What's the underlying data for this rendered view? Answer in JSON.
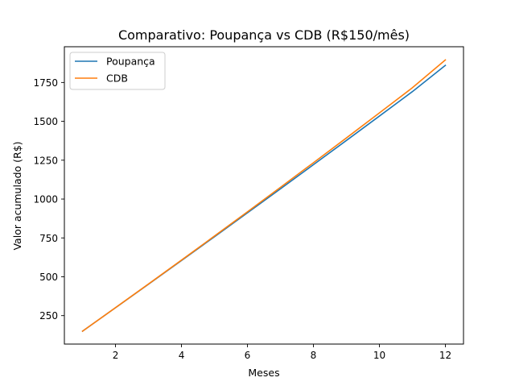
{
  "chart_data": {
    "type": "line",
    "title": "Comparativo: Poupança vs CDB (R$150/mês)",
    "xlabel": "Meses",
    "ylabel": "Valor acumulado (R$)",
    "xlim": [
      0.45,
      12.55
    ],
    "ylim": [
      67,
      1980
    ],
    "xticks": [
      2,
      4,
      6,
      8,
      10,
      12
    ],
    "yticks": [
      250,
      500,
      750,
      1000,
      1250,
      1500,
      1750
    ],
    "grid": false,
    "legend_position": "upper-left",
    "x": [
      1,
      2,
      3,
      4,
      5,
      6,
      7,
      8,
      9,
      10,
      11,
      12
    ],
    "series": [
      {
        "name": "Poupança",
        "color": "#1f77b4",
        "values": [
          150.0,
          300.75,
          452.25,
          604.5,
          757.5,
          911.25,
          1065.75,
          1221.0,
          1377.0,
          1533.75,
          1691.25,
          1860.0
        ]
      },
      {
        "name": "CDB",
        "color": "#ff7f0e",
        "values": [
          150.0,
          301.2,
          453.6,
          607.2,
          762.0,
          918.0,
          1075.2,
          1233.6,
          1393.2,
          1554.0,
          1716.0,
          1895.0
        ]
      }
    ]
  }
}
